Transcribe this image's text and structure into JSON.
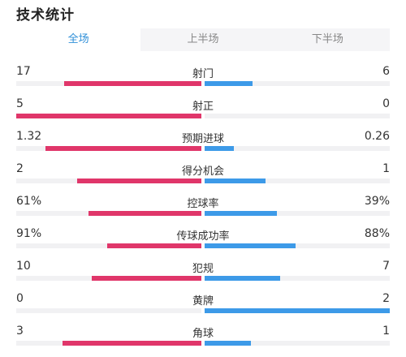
{
  "title": "技术统计",
  "tabs": [
    {
      "label": "全场",
      "active": true
    },
    {
      "label": "上半场",
      "active": false
    },
    {
      "label": "下半场",
      "active": false
    }
  ],
  "colors": {
    "home": "#e0366a",
    "away": "#3d9ae8",
    "active_tab": "#2f8fd8"
  },
  "stats": [
    {
      "label": "射门",
      "home": "17",
      "away": "6",
      "home_share": 0.74,
      "away_share": 0.26
    },
    {
      "label": "射正",
      "home": "5",
      "away": "0",
      "home_share": 1.0,
      "away_share": 0.0
    },
    {
      "label": "预期进球",
      "home": "1.32",
      "away": "0.26",
      "home_share": 0.84,
      "away_share": 0.16
    },
    {
      "label": "得分机会",
      "home": "2",
      "away": "1",
      "home_share": 0.67,
      "away_share": 0.33
    },
    {
      "label": "控球率",
      "home": "61%",
      "away": "39%",
      "home_share": 0.61,
      "away_share": 0.39
    },
    {
      "label": "传球成功率",
      "home": "91%",
      "away": "88%",
      "home_share": 0.51,
      "away_share": 0.49
    },
    {
      "label": "犯规",
      "home": "10",
      "away": "7",
      "home_share": 0.59,
      "away_share": 0.41
    },
    {
      "label": "黄牌",
      "home": "0",
      "away": "2",
      "home_share": 0.0,
      "away_share": 1.0
    },
    {
      "label": "角球",
      "home": "3",
      "away": "1",
      "home_share": 0.75,
      "away_share": 0.25
    }
  ]
}
